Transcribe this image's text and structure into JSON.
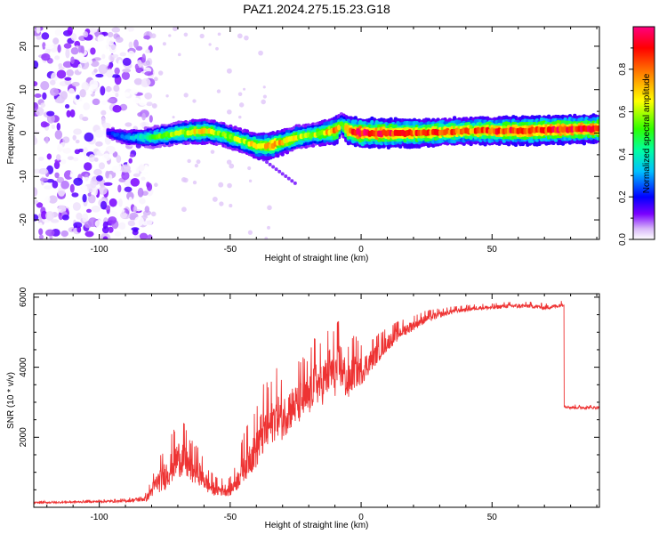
{
  "title": "PAZ1.2024.275.15.23.G18",
  "colors": {
    "snr_line": "#ee3333",
    "frame": "#000000",
    "colorbar_stops": [
      "#ffffff",
      "#d8b8f8",
      "#7a00ff",
      "#0000ff",
      "#00c0ff",
      "#00ffa0",
      "#30ff00",
      "#ffff00",
      "#ff8000",
      "#ff0000",
      "#ff0080"
    ]
  },
  "chart_data": [
    {
      "type": "heatmap",
      "title": "PAZ1.2024.275.15.23.G18",
      "xlabel": "Height of straight line (km)",
      "ylabel": "Frequency (Hz)",
      "xlim": [
        -125,
        91
      ],
      "ylim": [
        -24.5,
        24.5
      ],
      "xticks": [
        -100,
        -50,
        0,
        50
      ],
      "yticks": [
        20,
        10,
        0,
        -10,
        -20
      ],
      "colorbar": {
        "label": "Normalized spectral amplitude",
        "range": [
          0,
          1
        ],
        "ticks": [
          0.0,
          0.2,
          0.4,
          0.6,
          0.8
        ]
      },
      "ridge": {
        "x": [
          -97,
          -90,
          -80,
          -70,
          -60,
          -55,
          -50,
          -45,
          -40,
          -35,
          -30,
          -25,
          -20,
          -15,
          -10,
          -8,
          -5,
          0,
          10,
          20,
          40,
          60,
          75,
          91
        ],
        "freq": [
          0,
          -1,
          -1,
          0,
          0.5,
          0,
          -1,
          -2,
          -3,
          -3,
          -2,
          -1,
          -0.5,
          0,
          0.5,
          2,
          0.5,
          0,
          0,
          0,
          0.5,
          0.5,
          0.8,
          1
        ],
        "amplitude": [
          0.2,
          0.3,
          0.5,
          0.6,
          0.7,
          0.6,
          0.6,
          0.6,
          0.7,
          0.8,
          0.7,
          0.65,
          0.6,
          0.65,
          0.85,
          0.55,
          0.85,
          0.95,
          0.9,
          0.85,
          0.8,
          0.9,
          0.9,
          0.9
        ]
      },
      "noise_region_x": [
        -125,
        -80
      ]
    },
    {
      "type": "line",
      "xlabel": "Height of straight line (km)",
      "ylabel": "SNR (10 * v/v)",
      "xlim": [
        -125,
        91
      ],
      "ylim": [
        0,
        6100
      ],
      "xticks": [
        -100,
        -50,
        0,
        50
      ],
      "yticks": [
        2000,
        4000,
        6000
      ],
      "series": [
        {
          "x": [
            -125,
            -110,
            -90,
            -82,
            -78,
            -75,
            -72,
            -70,
            -68,
            -65,
            -62,
            -58,
            -55,
            -50,
            -47,
            -45,
            -42,
            -40,
            -38,
            -35,
            -32,
            -30,
            -28,
            -25,
            -22,
            -20,
            -18,
            -15,
            -12,
            -10,
            -8,
            -6,
            -5,
            -3,
            0,
            5,
            10,
            15,
            20,
            25,
            30,
            35,
            40,
            45,
            50,
            55,
            60,
            65,
            70,
            75,
            77,
            77.5,
            80,
            85,
            91
          ],
          "y": [
            130,
            150,
            180,
            250,
            700,
            900,
            1200,
            1400,
            1400,
            1100,
            1000,
            600,
            500,
            500,
            800,
            1200,
            1500,
            1700,
            2100,
            2300,
            2700,
            2500,
            2800,
            2900,
            3100,
            3100,
            3600,
            3500,
            3900,
            3800,
            4100,
            3700,
            3500,
            3900,
            3900,
            4300,
            4700,
            5000,
            5200,
            5400,
            5500,
            5600,
            5650,
            5700,
            5700,
            5750,
            5750,
            5750,
            5700,
            5750,
            5800,
            2900,
            2850,
            2850,
            2850
          ],
          "noise_amplitude": [
            40,
            40,
            60,
            150,
            500,
            700,
            800,
            900,
            900,
            700,
            600,
            400,
            300,
            300,
            500,
            800,
            900,
            1000,
            1200,
            1100,
            1100,
            1000,
            1100,
            1000,
            1100,
            1000,
            1100,
            1000,
            1200,
            1100,
            1200,
            1000,
            900,
            900,
            700,
            500,
            400,
            300,
            250,
            200,
            150,
            120,
            100,
            100,
            100,
            100,
            100,
            100,
            100,
            100,
            100,
            80,
            70,
            70,
            70
          ]
        }
      ]
    }
  ]
}
